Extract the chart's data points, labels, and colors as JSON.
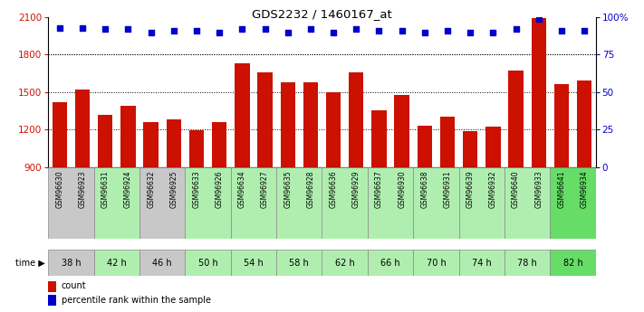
{
  "title": "GDS2232 / 1460167_at",
  "gsm_labels": [
    "GSM96630",
    "GSM96923",
    "GSM96631",
    "GSM96924",
    "GSM96632",
    "GSM96925",
    "GSM96633",
    "GSM96926",
    "GSM96634",
    "GSM96927",
    "GSM96635",
    "GSM96928",
    "GSM96636",
    "GSM96929",
    "GSM96637",
    "GSM96930",
    "GSM96638",
    "GSM96931",
    "GSM96639",
    "GSM96932",
    "GSM96640",
    "GSM96933",
    "GSM96641",
    "GSM96934"
  ],
  "counts": [
    1420,
    1520,
    1320,
    1390,
    1260,
    1280,
    1195,
    1260,
    1730,
    1660,
    1580,
    1580,
    1500,
    1660,
    1350,
    1480,
    1230,
    1300,
    1190,
    1225,
    1670,
    2090,
    1560,
    1590
  ],
  "percentile_ranks": [
    93,
    93,
    92,
    92,
    90,
    91,
    91,
    90,
    92,
    92,
    90,
    92,
    90,
    92,
    91,
    91,
    90,
    91,
    90,
    90,
    92,
    99,
    91,
    91
  ],
  "time_groups": [
    {
      "label": "38 h",
      "start": 0,
      "end": 2,
      "color": "#c8c8c8"
    },
    {
      "label": "42 h",
      "start": 2,
      "end": 4,
      "color": "#b0eeb0"
    },
    {
      "label": "46 h",
      "start": 4,
      "end": 6,
      "color": "#c8c8c8"
    },
    {
      "label": "50 h",
      "start": 6,
      "end": 8,
      "color": "#b0eeb0"
    },
    {
      "label": "54 h",
      "start": 8,
      "end": 10,
      "color": "#b0eeb0"
    },
    {
      "label": "58 h",
      "start": 10,
      "end": 12,
      "color": "#b0eeb0"
    },
    {
      "label": "62 h",
      "start": 12,
      "end": 14,
      "color": "#b0eeb0"
    },
    {
      "label": "66 h",
      "start": 14,
      "end": 16,
      "color": "#b0eeb0"
    },
    {
      "label": "70 h",
      "start": 16,
      "end": 18,
      "color": "#b0eeb0"
    },
    {
      "label": "74 h",
      "start": 18,
      "end": 20,
      "color": "#b0eeb0"
    },
    {
      "label": "78 h",
      "start": 20,
      "end": 22,
      "color": "#b0eeb0"
    },
    {
      "label": "82 h",
      "start": 22,
      "end": 24,
      "color": "#66dd66"
    }
  ],
  "bar_color": "#cc1100",
  "dot_color": "#0000cc",
  "ylim_left": [
    900,
    2100
  ],
  "ylim_right": [
    0,
    100
  ],
  "yticks_left": [
    900,
    1200,
    1500,
    1800,
    2100
  ],
  "yticks_right": [
    0,
    25,
    50,
    75,
    100
  ],
  "grid_values": [
    1200,
    1500,
    1800
  ],
  "n": 24
}
